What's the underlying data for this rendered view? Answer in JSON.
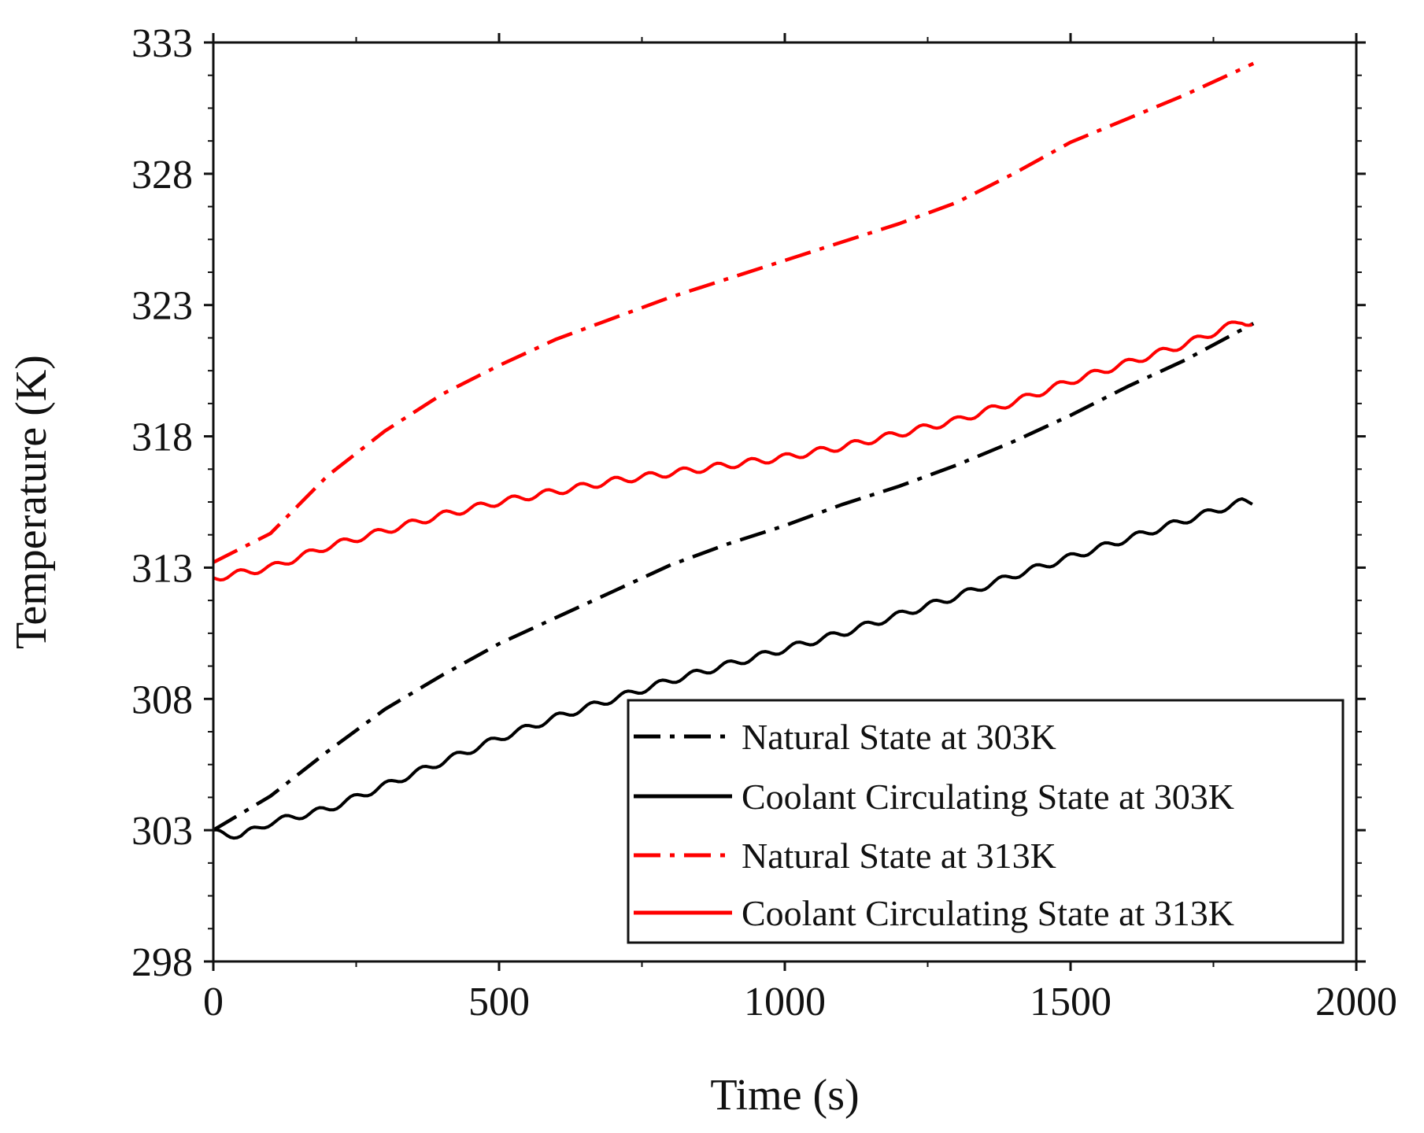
{
  "chart_data": {
    "type": "line",
    "title": "",
    "xlabel": "Time (s)",
    "ylabel": "Temperature (K)",
    "xlim": [
      0,
      2000
    ],
    "ylim": [
      298,
      333
    ],
    "xticks": [
      0,
      500,
      1000,
      1500,
      2000
    ],
    "yticks": [
      298,
      303,
      308,
      313,
      318,
      323,
      328,
      333
    ],
    "xtick_labels": [
      "0",
      "500",
      "1000",
      "1500",
      "2000"
    ],
    "ytick_labels": [
      "298",
      "303",
      "308",
      "313",
      "318",
      "323",
      "328",
      "333"
    ],
    "grid": false,
    "legend_position": "bottom-right",
    "series": [
      {
        "name": "Natural State at 303K",
        "color": "#000000",
        "style": "dash-dot",
        "noisy": false,
        "x": [
          0,
          100,
          200,
          300,
          400,
          500,
          600,
          700,
          800,
          900,
          1000,
          1100,
          1200,
          1300,
          1400,
          1500,
          1600,
          1700,
          1820
        ],
        "y": [
          303.0,
          304.3,
          306.0,
          307.6,
          308.9,
          310.1,
          311.1,
          312.1,
          313.1,
          313.9,
          314.6,
          315.4,
          316.1,
          316.9,
          317.8,
          318.8,
          319.9,
          320.9,
          322.3
        ]
      },
      {
        "name": "Coolant Circulating State at 303K",
        "color": "#000000",
        "style": "solid",
        "noisy": true,
        "x": [
          0,
          50,
          100,
          200,
          300,
          400,
          500,
          600,
          700,
          800,
          900,
          1000,
          1100,
          1200,
          1300,
          1400,
          1500,
          1600,
          1700,
          1800,
          1820
        ],
        "y": [
          302.9,
          302.8,
          303.3,
          303.8,
          304.7,
          305.6,
          306.5,
          307.3,
          308.0,
          308.7,
          309.3,
          309.9,
          310.5,
          311.2,
          311.9,
          312.7,
          313.4,
          314.1,
          314.8,
          315.5,
          315.5
        ]
      },
      {
        "name": "Natural State at 313K",
        "color": "#ff0000",
        "style": "dash-dot",
        "noisy": false,
        "x": [
          0,
          100,
          200,
          300,
          400,
          500,
          600,
          700,
          800,
          900,
          1000,
          1100,
          1200,
          1300,
          1400,
          1500,
          1600,
          1700,
          1820
        ],
        "y": [
          313.2,
          314.3,
          316.5,
          318.2,
          319.6,
          320.7,
          321.7,
          322.5,
          323.3,
          324.0,
          324.7,
          325.4,
          326.1,
          326.9,
          328.0,
          329.2,
          330.1,
          331.0,
          332.2
        ]
      },
      {
        "name": "Coolant Circulating State at 313K",
        "color": "#ff0000",
        "style": "solid",
        "noisy": true,
        "x": [
          0,
          100,
          200,
          300,
          400,
          500,
          600,
          700,
          800,
          900,
          1000,
          1100,
          1200,
          1300,
          1400,
          1500,
          1600,
          1700,
          1800,
          1820
        ],
        "y": [
          312.6,
          313.0,
          313.8,
          314.4,
          315.0,
          315.5,
          315.9,
          316.3,
          316.6,
          316.9,
          317.2,
          317.6,
          318.1,
          318.6,
          319.3,
          320.1,
          320.8,
          321.5,
          322.4,
          322.3
        ]
      }
    ]
  }
}
